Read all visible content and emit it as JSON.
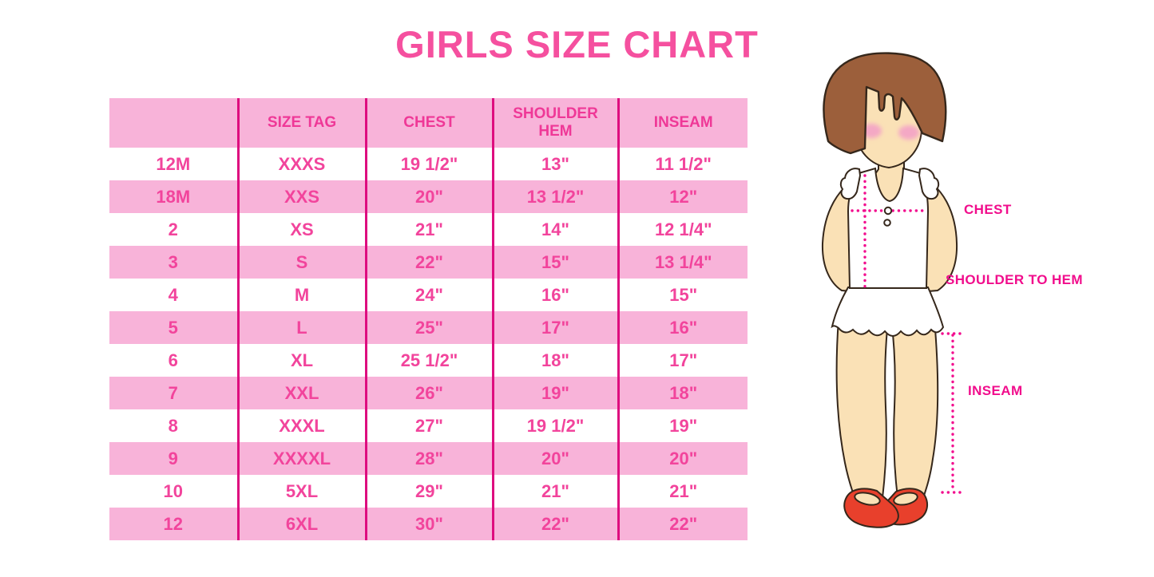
{
  "title": "GIRLS SIZE CHART",
  "chart_data": {
    "type": "table",
    "title": "GIRLS SIZE CHART",
    "columns": [
      "",
      "SIZE TAG",
      "CHEST",
      "SHOULDER HEM",
      "INSEAM"
    ],
    "rows": [
      [
        "12M",
        "XXXS",
        "19 1/2\"",
        "13\"",
        "11 1/2\""
      ],
      [
        "18M",
        "XXS",
        "20\"",
        "13 1/2\"",
        "12\""
      ],
      [
        "2",
        "XS",
        "21\"",
        "14\"",
        "12 1/4\""
      ],
      [
        "3",
        "S",
        "22\"",
        "15\"",
        "13 1/4\""
      ],
      [
        "4",
        "M",
        "24\"",
        "16\"",
        "15\""
      ],
      [
        "5",
        "L",
        "25\"",
        "17\"",
        "16\""
      ],
      [
        "6",
        "XL",
        "25 1/2\"",
        "18\"",
        "17\""
      ],
      [
        "7",
        "XXL",
        "26\"",
        "19\"",
        "18\""
      ],
      [
        "8",
        "XXXL",
        "27\"",
        "19 1/2\"",
        "19\""
      ],
      [
        "9",
        "XXXXL",
        "28\"",
        "20\"",
        "20\""
      ],
      [
        "10",
        "5XL",
        "29\"",
        "21\"",
        "21\""
      ],
      [
        "12",
        "6XL",
        "30\"",
        "22\"",
        "22\""
      ]
    ],
    "layout_hints": {
      "row_striping": "header pink, data rows alternate white/pink starting white",
      "grid": "vertical magenta column separators only, no horizontal lines, no outer border"
    }
  },
  "figure": {
    "description": "cartoon girl with brown bob hair, white sleeveless ruffle top and skirt, red mary-jane shoes, dotted magenta measurement guides",
    "labels": {
      "chest": "CHEST",
      "shoulder_to_hem": "SHOULDER TO HEM",
      "inseam": "INSEAM"
    }
  },
  "colors": {
    "title_pink": "#F5509F",
    "row_pink": "#F8B3D9",
    "grid_line": "#DE0D7F",
    "cell_text": "#F2449C",
    "label_magenta": "#F10D8C",
    "dot_line": "#F20D8E",
    "hair_brown": "#9C5F3B",
    "skin": "#FAE1B6",
    "blush": "#F4A8C5",
    "shoe_red": "#E8402C",
    "outline": "#35271B"
  }
}
